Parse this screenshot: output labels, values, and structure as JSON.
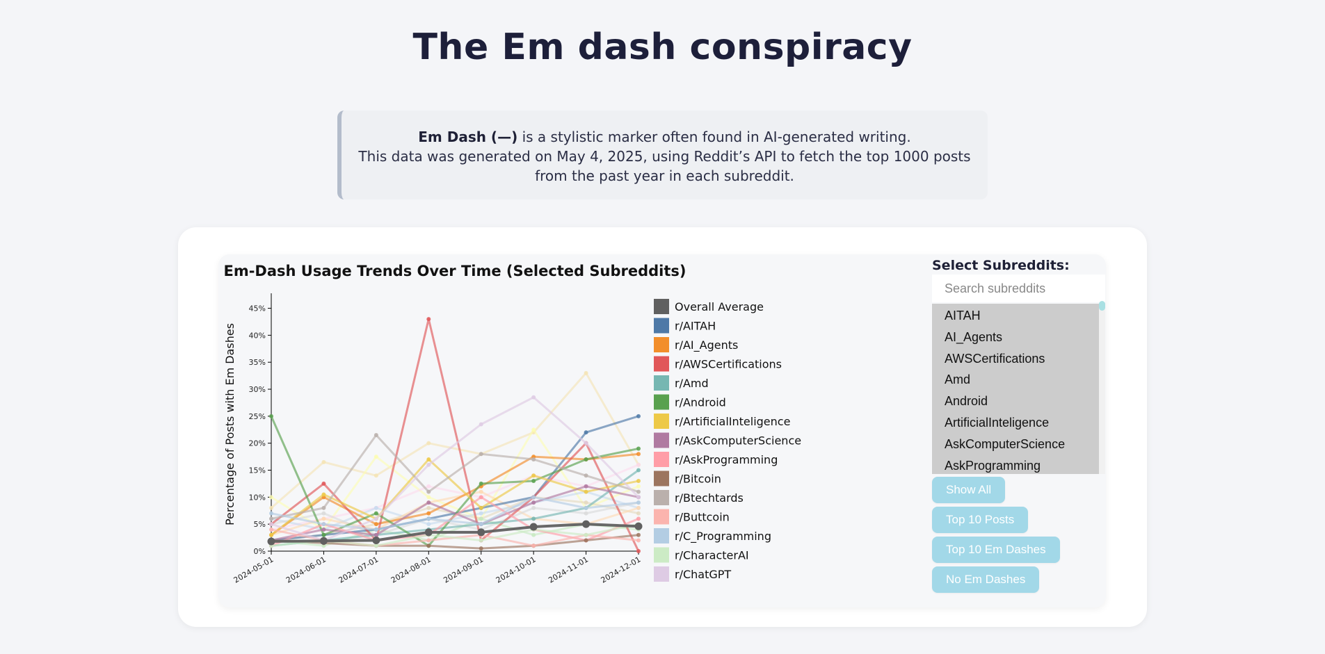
{
  "page": {
    "title": "The Em dash conspiracy",
    "intro_bold": "Em Dash (—)",
    "intro_line1_rest": " is a stylistic marker often found in AI-generated writing.",
    "intro_line2": "This data was generated on May 4, 2025, using Reddit’s API to fetch the top 1000 posts",
    "intro_line3": "from the past year in each subreddit."
  },
  "panel": {
    "title": "Select Subreddits:",
    "search_placeholder": "Search subreddits",
    "subreddits": [
      "AITAH",
      "AI_Agents",
      "AWSCertifications",
      "Amd",
      "Android",
      "ArtificialInteligence",
      "AskComputerScience",
      "AskProgramming"
    ],
    "buttons": {
      "show_all": "Show All",
      "top_posts": "Top 10 Posts",
      "top_em": "Top 10 Em Dashes",
      "no_em": "No Em Dashes"
    }
  },
  "chart_data": {
    "type": "line",
    "title": "Em-Dash Usage Trends Over Time (Selected Subreddits)",
    "ylabel": "Percentage of Posts with Em Dashes",
    "xlabel": "",
    "x": [
      "2024-05-01",
      "2024-06-01",
      "2024-07-01",
      "2024-08-01",
      "2024-09-01",
      "2024-10-01",
      "2024-11-01",
      "2024-12-01"
    ],
    "ylim": [
      0,
      47
    ],
    "yticks": [
      0,
      5,
      10,
      15,
      20,
      25,
      30,
      35,
      40,
      45
    ],
    "ytick_suffix": "%",
    "legend_position": "right",
    "average_series": {
      "name": "Overall Average",
      "color": "#606060",
      "values": [
        1.8,
        1.9,
        2.0,
        3.5,
        3.5,
        4.5,
        5.0,
        4.6
      ]
    },
    "series": [
      {
        "name": "r/AITAH",
        "color": "#4e79a7",
        "values": [
          2.0,
          3.0,
          4.0,
          6.0,
          8.0,
          10.0,
          22.0,
          25.0
        ]
      },
      {
        "name": "r/AI_Agents",
        "color": "#f28e2b",
        "values": [
          3.0,
          10.0,
          5.0,
          7.0,
          12.0,
          17.5,
          17.0,
          18.0
        ]
      },
      {
        "name": "r/AWSCertifications",
        "color": "#e15759",
        "values": [
          5.0,
          12.5,
          2.0,
          43.0,
          2.0,
          10.0,
          20.0,
          0.0
        ]
      },
      {
        "name": "r/Amd",
        "color": "#76b7b2",
        "values": [
          1.0,
          2.0,
          3.0,
          4.0,
          5.0,
          6.0,
          8.0,
          15.0
        ]
      },
      {
        "name": "r/Android",
        "color": "#59a14f",
        "values": [
          25.0,
          3.0,
          7.0,
          1.0,
          12.5,
          13.0,
          17.0,
          19.0
        ]
      },
      {
        "name": "r/ArtificialInteligence",
        "color": "#edc948",
        "values": [
          3.0,
          10.5,
          6.0,
          17.0,
          8.0,
          14.0,
          11.0,
          13.0
        ]
      },
      {
        "name": "r/AskComputerScience",
        "color": "#b07aa1",
        "values": [
          2.0,
          4.0,
          3.0,
          9.0,
          5.0,
          9.0,
          12.0,
          10.0
        ]
      },
      {
        "name": "r/AskProgramming",
        "color": "#ff9da7",
        "values": [
          1.0,
          5.0,
          2.0,
          3.0,
          10.0,
          4.0,
          2.0,
          6.0
        ]
      },
      {
        "name": "r/Bitcoin",
        "color": "#9c755f",
        "values": [
          2.0,
          1.5,
          1.0,
          1.0,
          0.5,
          1.0,
          2.0,
          3.0
        ]
      },
      {
        "name": "r/Btechtards",
        "color": "#bab0ac",
        "values": [
          6.0,
          8.0,
          21.5,
          11.0,
          18.0,
          17.0,
          14.0,
          11.0
        ]
      },
      {
        "name": "r/Buttcoin",
        "color": "#fbb4ae",
        "values": [
          4.0,
          2.0,
          1.0,
          2.0,
          3.0,
          1.0,
          3.0,
          2.0
        ]
      },
      {
        "name": "r/C_Programming",
        "color": "#b3cde3",
        "values": [
          7.0,
          5.0,
          4.0,
          6.0,
          5.0,
          10.0,
          8.0,
          9.0
        ]
      },
      {
        "name": "r/CharacterAI",
        "color": "#ccebc5",
        "values": [
          1.0,
          2.0,
          1.0,
          3.0,
          2.0,
          4.0,
          3.0,
          5.0
        ]
      },
      {
        "name": "r/ChatGPT",
        "color": "#decbe4",
        "values": [
          5.0,
          2.0,
          6.0,
          16.0,
          23.5,
          28.5,
          20.0,
          10.0
        ]
      }
    ],
    "background_series": [
      {
        "color": "#f5e3b3",
        "values": [
          8.0,
          16.5,
          14.0,
          20.0,
          18.0,
          22.0,
          33.0,
          16.0
        ]
      },
      {
        "color": "#fdfdb0",
        "values": [
          10.0,
          4.0,
          17.5,
          10.0,
          6.0,
          22.5,
          8.0,
          12.0
        ]
      },
      {
        "color": "#fddaec",
        "values": [
          4.0,
          6.0,
          8.0,
          12.0,
          10.0,
          14.0,
          12.0,
          16.0
        ]
      },
      {
        "color": "#e5d8bd",
        "values": [
          2.0,
          3.0,
          5.0,
          8.0,
          6.0,
          10.0,
          9.0,
          7.0
        ]
      },
      {
        "color": "#c6dbef",
        "values": [
          6.0,
          4.0,
          8.0,
          5.0,
          7.0,
          9.0,
          11.0,
          8.0
        ]
      },
      {
        "color": "#ffd8b1",
        "values": [
          3.0,
          6.0,
          4.0,
          9.0,
          11.0,
          6.0,
          5.0,
          8.0
        ]
      },
      {
        "color": "#d9d9d9",
        "values": [
          5.0,
          7.0,
          3.0,
          6.0,
          4.0,
          8.0,
          7.0,
          9.0
        ]
      },
      {
        "color": "#c7e9c0",
        "values": [
          2.0,
          1.0,
          4.0,
          2.0,
          6.0,
          3.0,
          5.0,
          4.0
        ]
      }
    ]
  }
}
